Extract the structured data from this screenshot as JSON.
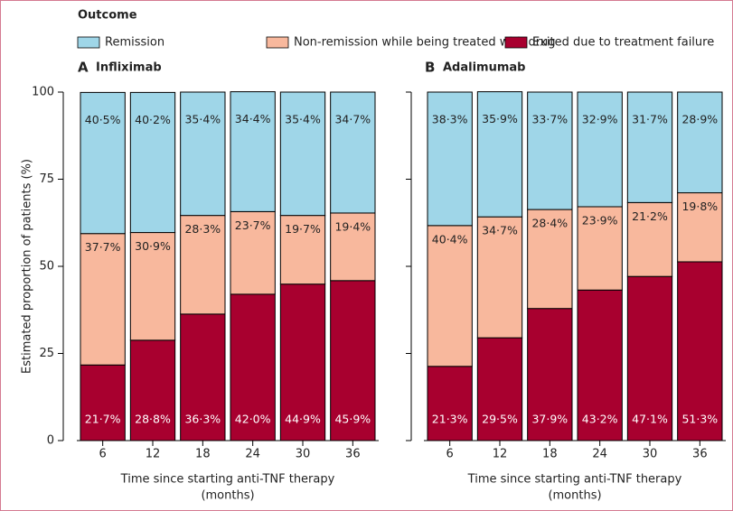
{
  "legend_title": "Outcome",
  "chart_data": [
    {
      "type": "stacked-bar",
      "panel": "A",
      "title": "Infliximab",
      "ylabel": "Estimated proportion of patients (%)",
      "xlabel": [
        "Time since starting anti-TNF therapy",
        "(months)"
      ],
      "categories": [
        "6",
        "12",
        "18",
        "24",
        "30",
        "36"
      ],
      "ylim": [
        0,
        100
      ],
      "yticks": [
        0,
        25,
        50,
        75,
        100
      ],
      "show_tick_labels": true,
      "series": [
        {
          "name": "Remission",
          "color": "#9fd6e8",
          "label_color": "#222",
          "values": [
            40.5,
            40.2,
            35.4,
            34.4,
            35.4,
            34.7
          ],
          "value_labels": [
            "40·5%",
            "40·2%",
            "35·4%",
            "34·4%",
            "35·4%",
            "34·7%"
          ]
        },
        {
          "name": "Non-remission while being treated with drug",
          "color": "#f8b89d",
          "label_color": "#222",
          "values": [
            37.7,
            30.9,
            28.3,
            23.7,
            19.7,
            19.4
          ],
          "value_labels": [
            "37·7%",
            "30·9%",
            "28·3%",
            "23·7%",
            "19·7%",
            "19·4%"
          ]
        },
        {
          "name": "Exited due to treatment failure",
          "color": "#a8002f",
          "label_color": "#fff",
          "values": [
            21.7,
            28.8,
            36.3,
            42.0,
            44.9,
            45.9
          ],
          "value_labels": [
            "21·7%",
            "28·8%",
            "36·3%",
            "42·0%",
            "44·9%",
            "45·9%"
          ]
        }
      ]
    },
    {
      "type": "stacked-bar",
      "panel": "B",
      "title": "Adalimumab",
      "xlabel": [
        "Time since starting anti-TNF therapy",
        "(months)"
      ],
      "categories": [
        "6",
        "12",
        "18",
        "24",
        "30",
        "36"
      ],
      "ylim": [
        0,
        100
      ],
      "yticks": [
        0,
        25,
        50,
        75,
        100
      ],
      "show_tick_labels": false,
      "series": [
        {
          "color": "#9fd6e8",
          "label_color": "#222",
          "values": [
            38.3,
            35.9,
            33.7,
            32.9,
            31.7,
            28.9
          ],
          "value_labels": [
            "38·3%",
            "35·9%",
            "33·7%",
            "32·9%",
            "31·7%",
            "28·9%"
          ]
        },
        {
          "color": "#f8b89d",
          "label_color": "#222",
          "values": [
            40.4,
            34.7,
            28.4,
            23.9,
            21.2,
            19.8
          ],
          "value_labels": [
            "40·4%",
            "34·7%",
            "28·4%",
            "23·9%",
            "21·2%",
            "19·8%"
          ]
        },
        {
          "color": "#a8002f",
          "label_color": "#fff",
          "values": [
            21.3,
            29.5,
            37.9,
            43.2,
            47.1,
            51.3
          ],
          "value_labels": [
            "21·3%",
            "29·5%",
            "37·9%",
            "43·2%",
            "47·1%",
            "51·3%"
          ]
        }
      ]
    }
  ]
}
